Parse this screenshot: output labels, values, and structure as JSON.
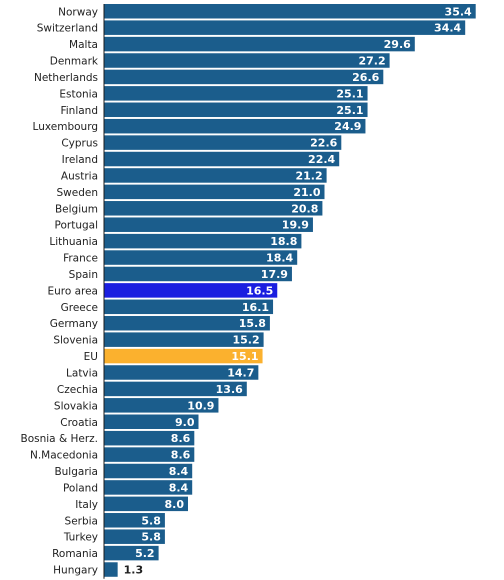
{
  "chart_data": {
    "type": "bar",
    "orientation": "horizontal",
    "categories": [
      "Norway",
      "Switzerland",
      "Malta",
      "Denmark",
      "Netherlands",
      "Estonia",
      "Finland",
      "Luxembourg",
      "Cyprus",
      "Ireland",
      "Austria",
      "Sweden",
      "Belgium",
      "Portugal",
      "Lithuania",
      "France",
      "Spain",
      "Euro area",
      "Greece",
      "Germany",
      "Slovenia",
      "EU",
      "Latvia",
      "Czechia",
      "Slovakia",
      "Croatia",
      "Bosnia & Herz.",
      "N.Macedonia",
      "Bulgaria",
      "Poland",
      "Italy",
      "Serbia",
      "Turkey",
      "Romania",
      "Hungary"
    ],
    "values": [
      35.4,
      34.4,
      29.6,
      27.2,
      26.6,
      25.1,
      25.1,
      24.9,
      22.6,
      22.4,
      21.2,
      21.0,
      20.8,
      19.9,
      18.8,
      18.4,
      17.9,
      16.5,
      16.1,
      15.8,
      15.2,
      15.1,
      14.7,
      13.6,
      10.9,
      9.0,
      8.6,
      8.6,
      8.4,
      8.4,
      8.0,
      5.8,
      5.8,
      5.2,
      1.3
    ],
    "value_labels": [
      "35.4",
      "34.4",
      "29.6",
      "27.2",
      "26.6",
      "25.1",
      "25.1",
      "24.9",
      "22.6",
      "22.4",
      "21.2",
      "21.0",
      "20.8",
      "19.9",
      "18.8",
      "18.4",
      "17.9",
      "16.5",
      "16.1",
      "15.8",
      "15.2",
      "15.1",
      "14.7",
      "13.6",
      "10.9",
      "9.0",
      "8.6",
      "8.6",
      "8.4",
      "8.4",
      "8.0",
      "5.8",
      "5.8",
      "5.2",
      "1.3"
    ],
    "title": "",
    "xlabel": "",
    "ylabel": "",
    "xlim": [
      0,
      36
    ],
    "grid": false,
    "legend": "none",
    "colors": {
      "default": "#1b5d8c",
      "Euro area": "#1a1ee0",
      "EU": "#fbb12e"
    }
  }
}
